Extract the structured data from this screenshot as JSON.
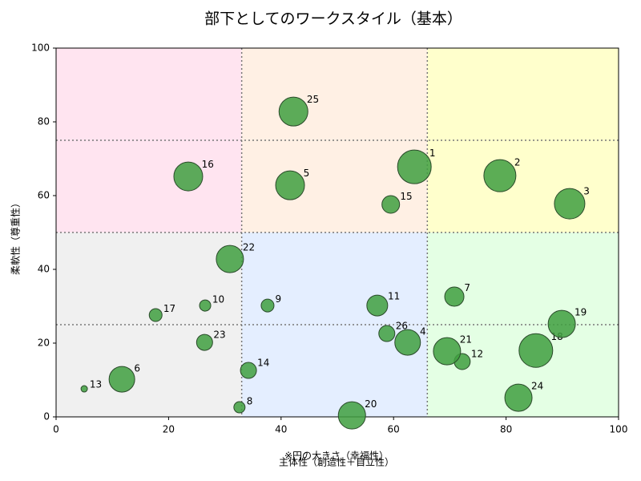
{
  "chart_data": {
    "type": "scatter",
    "title": "部下としてのワークスタイル（基本）",
    "xlabel": "主体性（創造性＋自立性）",
    "ylabel": "柔軟性（尊重性）",
    "annotation": "※円の大きさ（幸福性）",
    "xlim": [
      0,
      100
    ],
    "ylim": [
      0,
      100
    ],
    "xticks": [
      0,
      20,
      40,
      60,
      80,
      100
    ],
    "yticks": [
      0,
      20,
      40,
      60,
      80,
      100
    ],
    "vlines": [
      33,
      66
    ],
    "hlines": [
      25,
      50,
      75
    ],
    "regions": [
      {
        "x": [
          0,
          33
        ],
        "y": [
          50,
          100
        ],
        "color": "#ffe4f0"
      },
      {
        "x": [
          33,
          66
        ],
        "y": [
          50,
          100
        ],
        "color": "#fff0e4"
      },
      {
        "x": [
          66,
          100
        ],
        "y": [
          50,
          100
        ],
        "color": "#ffffcc"
      },
      {
        "x": [
          0,
          33
        ],
        "y": [
          0,
          50
        ],
        "color": "#f0f0f0"
      },
      {
        "x": [
          33,
          66
        ],
        "y": [
          0,
          50
        ],
        "color": "#e4eeff"
      },
      {
        "x": [
          66,
          100
        ],
        "y": [
          0,
          50
        ],
        "color": "#e4ffe4"
      }
    ],
    "color": "#3f9f3f",
    "labels": [
      "1",
      "2",
      "3",
      "4",
      "5",
      "6",
      "7",
      "8",
      "9",
      "10",
      "11",
      "12",
      "13",
      "14",
      "15",
      "16",
      "17",
      "18",
      "19",
      "20",
      "21",
      "22",
      "23",
      "24",
      "25",
      "26"
    ],
    "x": [
      63.7,
      78.9,
      91.3,
      62.5,
      41.6,
      11.7,
      70.8,
      32.6,
      37.6,
      26.5,
      57.1,
      72.2,
      5.0,
      34.2,
      59.5,
      23.5,
      17.7,
      85.3,
      89.9,
      52.6,
      69.5,
      30.9,
      26.4,
      82.2,
      42.2,
      58.8
    ],
    "values": [
      67.8,
      65.4,
      57.8,
      20.2,
      62.8,
      10.2,
      32.6,
      2.6,
      30.2,
      30.2,
      30.2,
      15.0,
      7.6,
      12.6,
      57.6,
      65.2,
      27.6,
      18.0,
      25.2,
      0.4,
      17.8,
      42.8,
      20.2,
      5.2,
      82.8,
      22.6
    ],
    "sizes": [
      441,
      400,
      361,
      256,
      324,
      256,
      144,
      49,
      64,
      49,
      169,
      100,
      16,
      100,
      121,
      324,
      64,
      441,
      289,
      289,
      289,
      289,
      100,
      289,
      324,
      100
    ]
  }
}
